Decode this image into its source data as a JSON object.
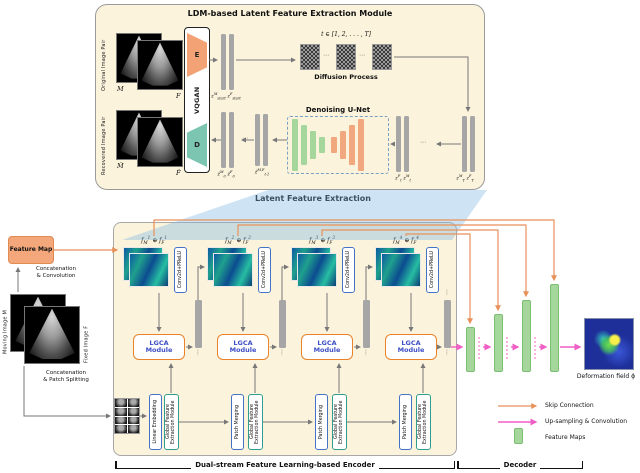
{
  "symbols": {
    "dots_h": "⋯",
    "dots_v": "⋮"
  },
  "ldm_module": {
    "title": "LDM-based Latent Feature Extraction Module",
    "original_pair_label": "Original Image Pair",
    "recovered_pair_label": "Recovered Image Pair",
    "vqgan_label": "VQGAN",
    "encoder_letter": "E",
    "decoder_letter": "D",
    "moving_letter": "M",
    "fixed_letter": "F",
    "moving_hat_letter": "M̂",
    "fixed_hat_letter": "F̂",
    "t_range": "t ∈ [1, 2, . . . , T]",
    "diffusion_label": "Diffusion Process",
    "unet_label": "Denoising U-Net",
    "z_start_label": "z^{M}_{start} z^{F}_{start}",
    "z0_label": "ẑ^{M}_{0} ẑ^{F}_{0}",
    "zt1_label": "ẑ^{M,F}_{t-1}",
    "zt_label": "z^{F}_{t} z^{M}_{t}",
    "zT_label": "z^{M}_{T} z^{F}_{T}"
  },
  "latent_extraction_label": "Latent Feature Extraction",
  "left_panel": {
    "feature_map_label": "Feature Map",
    "concat_conv_line1": "Concatenation",
    "concat_conv_line2": "& Convolution",
    "moving_image_label": "Moving Image M",
    "fixed_image_label": "Fixed Image F",
    "concat_patch_line1": "Concatenation",
    "concat_patch_line2": "& Patch Splitting"
  },
  "encoder": {
    "bracket_label": "Dual-stream Feature Learning-based Encoder",
    "linear_embedding_label": "Linear Embedding",
    "patch_merging_label": "Patch Merging",
    "gfem_label": "Global Feature Extraction Module",
    "conv_label": "Conv2d+PReLU",
    "lgca_line1": "LGCA",
    "lgca_line2": "Module",
    "blocks": [
      {
        "feature_label": "f_{M}^{1} ⊕ f_{F}^{1}"
      },
      {
        "feature_label": "f_{M}^{2} ⊕ f_{F}^{2}"
      },
      {
        "feature_label": "f_{M}^{3} ⊕ f_{F}^{3}"
      },
      {
        "feature_label": "f_{M}^{4} ⊕ f_{F}^{4}"
      }
    ]
  },
  "decoder": {
    "bracket_label": "Decoder",
    "deformation_label": "Deformation field ϕ"
  },
  "legend": {
    "skip_label": "Skip Connection",
    "upsample_label": "Up-sampling & Convolution",
    "feature_maps_label": "Feature Maps"
  }
}
